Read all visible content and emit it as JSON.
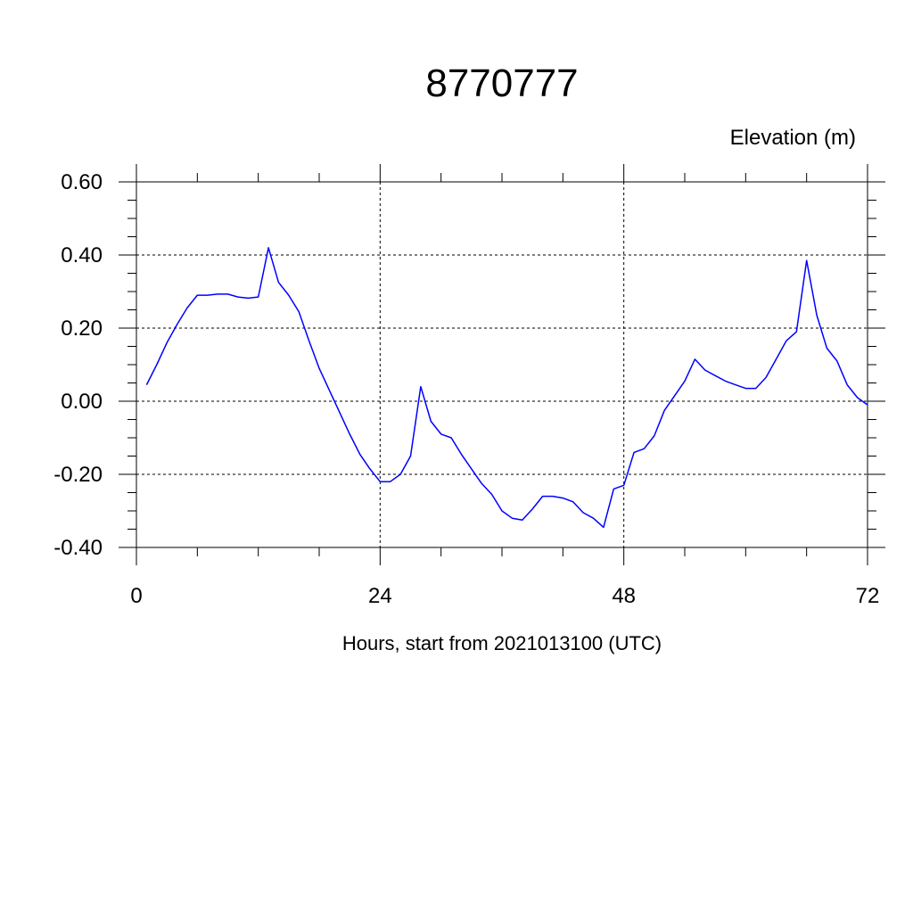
{
  "chart_data": {
    "type": "line",
    "title": "8770777",
    "subtitle": "Elevation (m)",
    "xlabel": "Hours, start from 2021013100 (UTC)",
    "ylabel": "",
    "xlim": [
      0,
      72
    ],
    "ylim": [
      -0.4,
      0.6
    ],
    "x_ticks": [
      0,
      24,
      48,
      72
    ],
    "x_tick_labels": [
      "0",
      "24",
      "48",
      "72"
    ],
    "y_ticks": [
      -0.4,
      -0.2,
      0.0,
      0.2,
      0.4,
      0.6
    ],
    "y_tick_labels": [
      "-0.40",
      "-0.20",
      "0.00",
      "0.20",
      "0.40",
      "0.60"
    ],
    "grid": true,
    "line_color": "#0000ff",
    "series": [
      {
        "x": [
          1,
          2,
          3,
          4,
          5,
          6,
          7,
          8,
          9,
          10,
          11,
          12,
          13,
          14,
          15,
          16,
          17,
          18,
          19,
          20,
          21,
          22,
          23,
          24,
          25,
          26,
          27,
          28,
          29,
          30,
          31,
          32,
          33,
          34,
          35,
          36,
          37,
          38,
          39,
          40,
          41,
          42,
          43,
          44,
          45,
          46,
          47,
          48,
          49,
          50,
          51,
          52,
          53,
          54,
          55,
          56,
          57,
          58,
          59,
          60,
          61,
          62,
          63,
          64,
          65,
          66,
          67,
          68,
          69,
          70,
          71,
          72
        ],
        "values": [
          0.045,
          0.1,
          0.16,
          0.21,
          0.255,
          0.29,
          0.29,
          0.293,
          0.293,
          0.285,
          0.282,
          0.285,
          0.42,
          0.325,
          0.29,
          0.245,
          0.165,
          0.09,
          0.03,
          -0.03,
          -0.09,
          -0.145,
          -0.185,
          -0.22,
          -0.22,
          -0.2,
          -0.15,
          0.04,
          -0.055,
          -0.09,
          -0.1,
          -0.145,
          -0.185,
          -0.225,
          -0.255,
          -0.3,
          -0.32,
          -0.325,
          -0.295,
          -0.26,
          -0.26,
          -0.265,
          -0.275,
          -0.305,
          -0.32,
          -0.345,
          -0.24,
          -0.23,
          -0.14,
          -0.13,
          -0.095,
          -0.025,
          0.015,
          0.055,
          0.115,
          0.085,
          0.07,
          0.055,
          0.045,
          0.035,
          0.035,
          0.065,
          0.115,
          0.165,
          0.19,
          0.385,
          0.235,
          0.145,
          0.11,
          0.045,
          0.01,
          -0.01
        ]
      }
    ]
  }
}
